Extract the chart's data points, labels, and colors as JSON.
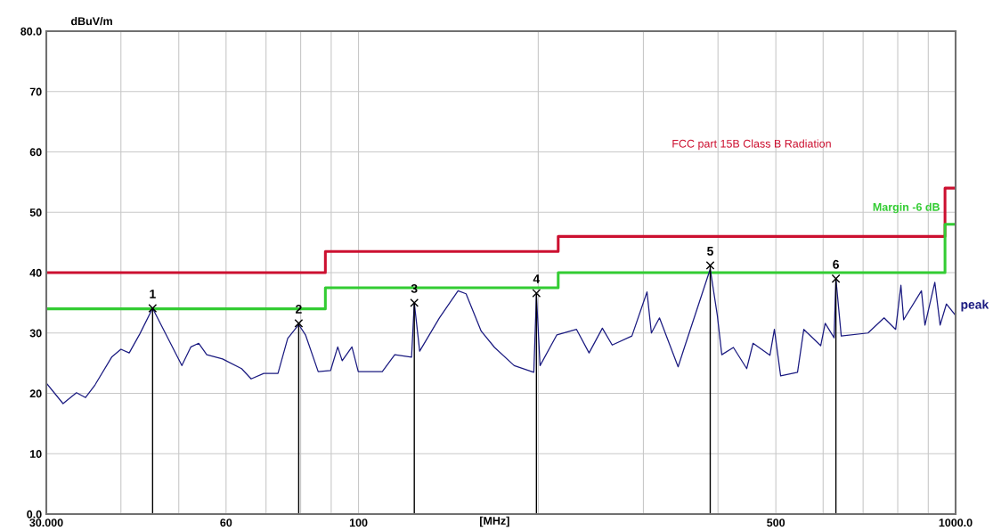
{
  "chart_data": {
    "type": "line",
    "xlabel": "[MHz]",
    "ylabel": "dBuV/m",
    "log": "x",
    "xlim": [
      30,
      1000
    ],
    "ylim": [
      0,
      80
    ],
    "xticks": [
      {
        "value": 30,
        "label": "30.000"
      },
      {
        "value": 40,
        "label": null
      },
      {
        "value": 50,
        "label": null
      },
      60,
      {
        "value": 70,
        "label": null
      },
      {
        "value": 80,
        "label": null
      },
      {
        "value": 90,
        "label": null
      },
      100,
      {
        "value": 200,
        "label": null
      },
      {
        "value": 300,
        "label": null
      },
      {
        "value": 400,
        "label": null
      },
      500,
      {
        "value": 600,
        "label": null
      },
      {
        "value": 700,
        "label": null
      },
      {
        "value": 800,
        "label": null
      },
      {
        "value": 900,
        "label": null
      },
      {
        "value": 1000,
        "label": "1000.0"
      }
    ],
    "yticks": [
      {
        "value": 0,
        "label": "0.0"
      },
      10,
      20,
      30,
      40,
      50,
      60,
      70,
      {
        "value": 80,
        "label": "80.0"
      }
    ],
    "grid": true,
    "legend": false,
    "marker": "none",
    "series": [
      {
        "name": "FCC part 15B Class B Radiation",
        "type": "step",
        "color": "#cc1030",
        "x": [
          30,
          88,
          216,
          960,
          1000
        ],
        "values": [
          40,
          43.5,
          46,
          54,
          54
        ]
      },
      {
        "name": "Margin -6 dB",
        "type": "step",
        "color": "#33cc33",
        "x": [
          30,
          88,
          216,
          960,
          1000
        ],
        "values": [
          34,
          37.5,
          40,
          48,
          48
        ]
      },
      {
        "name": "peak",
        "color": "#1a1a80",
        "x": [
          30.0,
          32.0,
          33.7,
          34.9,
          36.2,
          38.6,
          40.0,
          41.3,
          43.0,
          45.2,
          46.9,
          50.6,
          52.4,
          54.0,
          55.7,
          59.2,
          63.7,
          66.1,
          69.4,
          73.3,
          76.1,
          79.4,
          81.5,
          85.6,
          89.8,
          92.3,
          93.9,
          97.5,
          99.9,
          109.6,
          115.0,
          122.7,
          124.0,
          126.6,
          136.6,
          146.8,
          151.4,
          160.5,
          169.0,
          182.3,
          196.6,
          198.6,
          201.4,
          214.9,
          231.8,
          243.3,
          256.1,
          266.0,
          287.0,
          304.2,
          309.4,
          319.2,
          343.0,
          351.4,
          388.2,
          399.0,
          405.9,
          424.5,
          446.9,
          457.9,
          488.7,
          497.2,
          509.3,
          543.6,
          556.9,
          594.5,
          604.8,
          625.9,
          630.3,
          643.4,
          713.4,
          758.9,
          793.6,
          809.9,
          818.4,
          876.6,
          888.6,
          923.0,
          942.1,
          965.1,
          1000
        ],
        "values": [
          21.7,
          18.3,
          20.1,
          19.3,
          21.4,
          26.0,
          27.3,
          26.7,
          29.8,
          34.1,
          31.0,
          24.6,
          27.7,
          28.3,
          26.4,
          25.7,
          24.1,
          22.4,
          23.3,
          23.3,
          29.1,
          31.4,
          29.7,
          23.6,
          23.8,
          27.7,
          25.4,
          27.7,
          23.6,
          23.6,
          26.4,
          26.0,
          35.0,
          27.0,
          32.5,
          37.0,
          36.5,
          30.3,
          27.6,
          24.6,
          23.5,
          36.3,
          24.6,
          29.7,
          30.6,
          26.7,
          30.8,
          28.0,
          29.5,
          36.8,
          30.0,
          32.5,
          24.4,
          27.6,
          40.6,
          32.9,
          26.4,
          27.6,
          24.1,
          28.3,
          26.3,
          30.6,
          22.9,
          23.5,
          30.6,
          27.9,
          31.6,
          29.2,
          39.0,
          29.5,
          30.0,
          32.5,
          30.6,
          37.9,
          32.2,
          37.0,
          31.3,
          38.4,
          31.3,
          34.8,
          32.9
        ]
      }
    ],
    "annotations": [
      {
        "text": "1",
        "x": 45.2,
        "y": 34.1
      },
      {
        "text": "2",
        "x": 79.4,
        "y": 31.6
      },
      {
        "text": "3",
        "x": 124.0,
        "y": 35.0
      },
      {
        "text": "4",
        "x": 198.6,
        "y": 36.6
      },
      {
        "text": "5",
        "x": 388.2,
        "y": 41.2
      },
      {
        "text": "6",
        "x": 630.3,
        "y": 39.0
      }
    ]
  }
}
